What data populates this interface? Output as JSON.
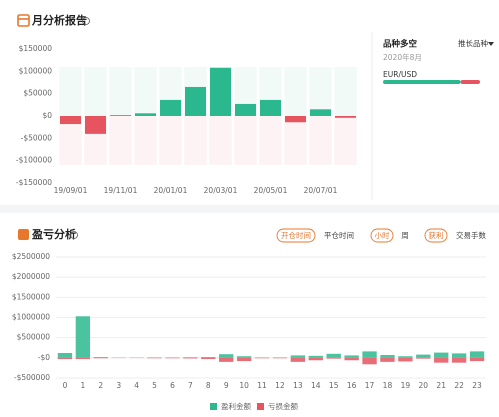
{
  "panel1": {
    "title": "月分析报告",
    "chart_data": {
      "type": "bar",
      "categories": [
        "19/09/01",
        null,
        "19/11/01",
        null,
        "20/01/01",
        null,
        "20/03/01",
        null,
        "20/05/01",
        null,
        "20/07/01",
        null
      ],
      "values": [
        -18000,
        -40000,
        2000,
        6000,
        36000,
        65000,
        108000,
        27000,
        36000,
        -14000,
        15000,
        -4000
      ],
      "colors": {
        "positive": "#2cb88e",
        "negative": "#e5545f"
      },
      "ylim": [
        -150000,
        150000
      ],
      "yticks": [
        {
          "value": 150000,
          "label": "$150000"
        },
        {
          "value": 100000,
          "label": "$100000"
        },
        {
          "value": 50000,
          "label": "$50000"
        },
        {
          "value": 0,
          "label": "$0"
        },
        {
          "value": -50000,
          "label": "-$50000"
        },
        {
          "value": -100000,
          "label": "-$100000"
        },
        {
          "value": -150000,
          "label": "-$150000"
        }
      ],
      "grid": false
    },
    "side": {
      "title": "品种多空",
      "date": "2020年8月",
      "dropdown": "推长品种",
      "symbol": "EUR/USD",
      "long_short": [
        80,
        20
      ]
    }
  },
  "panel2": {
    "title": "盈亏分析",
    "buttons": [
      [
        "开仓时间",
        "平仓时间"
      ],
      [
        "小时",
        "周"
      ],
      [
        "获利",
        "交易手数"
      ]
    ],
    "chart_data": {
      "type": "bar",
      "categories": [
        "0",
        "1",
        "2",
        "3",
        "4",
        "5",
        "6",
        "7",
        "8",
        "9",
        "10",
        "11",
        "12",
        "13",
        "14",
        "15",
        "16",
        "17",
        "18",
        "19",
        "20",
        "21",
        "22",
        "23"
      ],
      "series": [
        {
          "name": "盈利金额",
          "color": "#2cb88e",
          "values": [
            120000,
            1030000,
            20000,
            5000,
            5000,
            10000,
            10000,
            15000,
            20000,
            90000,
            40000,
            10000,
            10000,
            60000,
            50000,
            100000,
            60000,
            160000,
            70000,
            40000,
            80000,
            130000,
            110000,
            160000
          ]
        },
        {
          "name": "亏损金额",
          "color": "#e5545f",
          "values": [
            -30000,
            -30000,
            -10000,
            -5000,
            -5000,
            -10000,
            -10000,
            -15000,
            -30000,
            -100000,
            -80000,
            -10000,
            -10000,
            -100000,
            -60000,
            -20000,
            -60000,
            -160000,
            -100000,
            -90000,
            -20000,
            -120000,
            -120000,
            -80000
          ]
        }
      ],
      "ylim": [
        -500000,
        2500000
      ],
      "yticks": [
        {
          "value": 2500000,
          "label": "$2500000"
        },
        {
          "value": 2000000,
          "label": "$2000000"
        },
        {
          "value": 1500000,
          "label": "$1500000"
        },
        {
          "value": 1000000,
          "label": "$1000000"
        },
        {
          "value": 500000,
          "label": "$500000"
        },
        {
          "value": 0,
          "label": "-$0"
        },
        {
          "value": -500000,
          "label": "-$500000"
        }
      ],
      "grid": true
    }
  }
}
